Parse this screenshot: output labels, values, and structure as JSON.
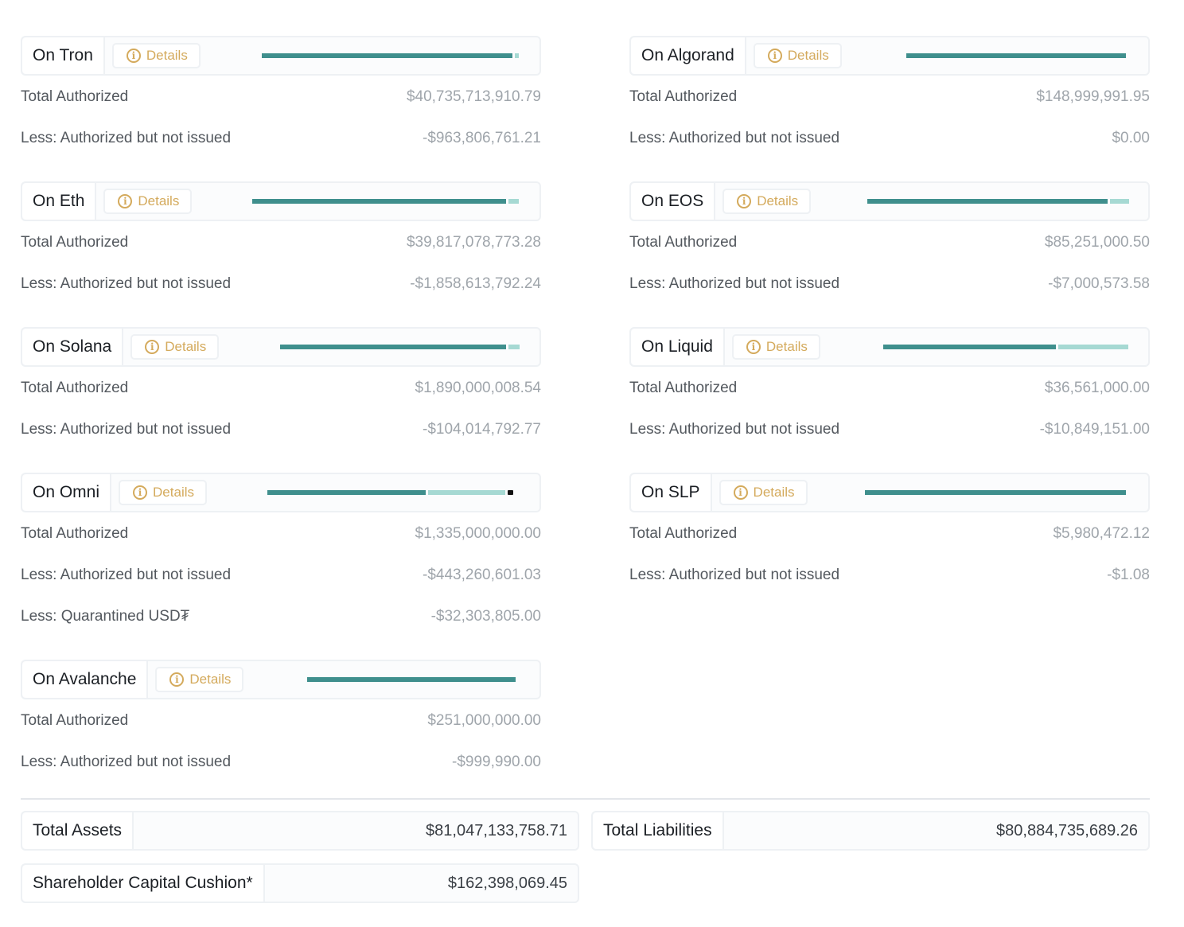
{
  "row_labels": {
    "total": "Total Authorized",
    "less": "Less: Authorized but not issued",
    "quarantined": "Less: Quarantined USD₮"
  },
  "details_label": "Details",
  "left_chains": [
    {
      "name": "On Tron",
      "total": "$40,735,713,910.79",
      "less": "-$963,806,761.21",
      "issued_fraction": 0.976
    },
    {
      "name": "On Eth",
      "total": "$39,817,078,773.28",
      "less": "-$1,858,613,792.24",
      "issued_fraction": 0.953
    },
    {
      "name": "On Solana",
      "total": "$1,890,000,008.54",
      "less": "-$104,014,792.77",
      "issued_fraction": 0.945
    },
    {
      "name": "On Omni",
      "total": "$1,335,000,000.00",
      "less": "-$443,260,601.03",
      "quarantined": "-$32,303,805.00",
      "issued_fraction": 0.644,
      "quarantined_fraction": 0.024
    },
    {
      "name": "On Avalanche",
      "total": "$251,000,000.00",
      "less": "-$999,990.00",
      "issued_fraction": 0.996
    }
  ],
  "right_chains": [
    {
      "name": "On Algorand",
      "total": "$148,999,991.95",
      "less": "$0.00",
      "issued_fraction": 1.0
    },
    {
      "name": "On EOS",
      "total": "$85,251,000.50",
      "less": "-$7,000,573.58",
      "issued_fraction": 0.918
    },
    {
      "name": "On Liquid",
      "total": "$36,561,000.00",
      "less": "-$10,849,151.00",
      "issued_fraction": 0.703
    },
    {
      "name": "On SLP",
      "total": "$5,980,472.12",
      "less": "-$1.08",
      "issued_fraction": 1.0
    }
  ],
  "totals": {
    "assets_label": "Total Assets",
    "assets_value": "$81,047,133,758.71",
    "liabilities_label": "Total Liabilities",
    "liabilities_value": "$80,884,735,689.26",
    "cushion_label": "Shareholder Capital Cushion*",
    "cushion_value": "$162,398,069.45"
  },
  "colors": {
    "issued_bar": "#3f8f8d",
    "unissued_bar": "#a6d9d3",
    "quarantined_bar": "#111111",
    "details_accent": "#d4aa5c"
  }
}
